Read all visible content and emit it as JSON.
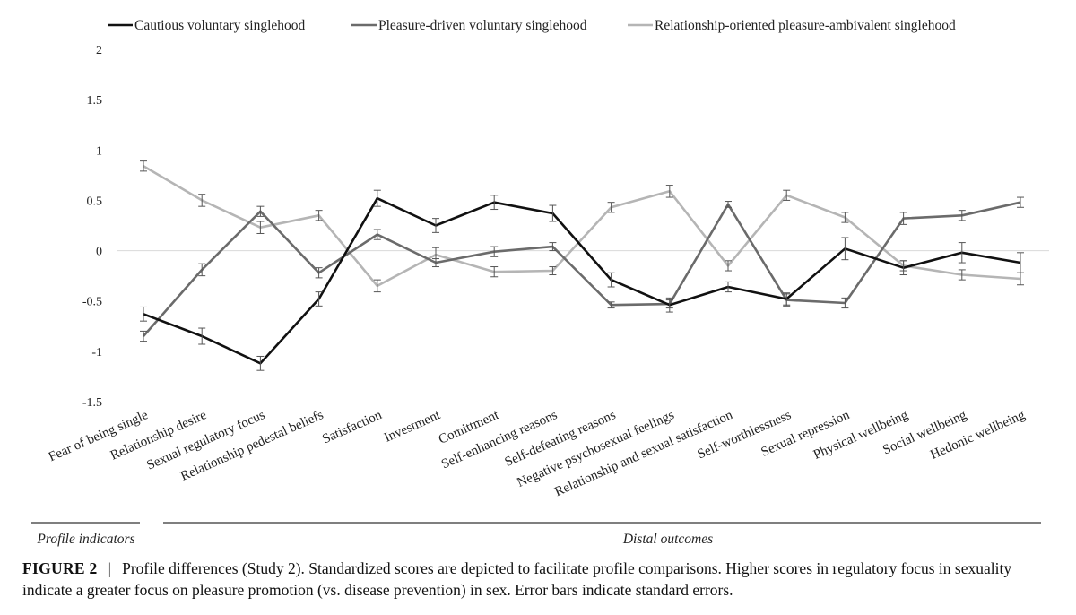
{
  "chart_data": {
    "type": "line",
    "title": "",
    "xlabel": "",
    "ylabel": "",
    "ylim": [
      -1.5,
      2
    ],
    "yticks": [
      -1.5,
      -1,
      -0.5,
      0,
      0.5,
      1,
      1.5,
      2
    ],
    "ytick_labels": [
      "-1.5",
      "-1",
      "-0.5",
      "0",
      "0.5",
      "1",
      "1.5",
      "2"
    ],
    "categories": [
      "Fear of being single",
      "Relationship desire",
      "Sexual regulatory focus",
      "Relationship pedestal beliefs",
      "Satisfaction",
      "Investment",
      "Comittment",
      "Self-enhancing reasons",
      "Self-defeating reasons",
      "Negative psychosexual feelings",
      "Relationship and sexual satisfaction",
      "Self-worthlessness",
      "Sexual repression",
      "Physical wellbeing",
      "Social wellbeing",
      "Hedonic wellbeing"
    ],
    "series": [
      {
        "name": "Cautious voluntary singlehood",
        "color": "#111111",
        "values": [
          -0.63,
          -0.85,
          -1.12,
          -0.48,
          0.52,
          0.25,
          0.48,
          0.37,
          -0.29,
          -0.54,
          -0.36,
          -0.48,
          0.02,
          -0.17,
          -0.02,
          -0.12
        ],
        "errors": [
          0.07,
          0.08,
          0.07,
          0.07,
          0.08,
          0.07,
          0.07,
          0.08,
          0.07,
          0.07,
          0.05,
          0.06,
          0.11,
          0.07,
          0.1,
          0.1
        ]
      },
      {
        "name": "Pleasure-driven voluntary singlehood",
        "color": "#6b6b6b",
        "values": [
          -0.85,
          -0.19,
          0.39,
          -0.22,
          0.16,
          -0.12,
          -0.01,
          0.04,
          -0.54,
          -0.53,
          0.46,
          -0.49,
          -0.52,
          0.32,
          0.35,
          0.48
        ],
        "errors": [
          0.05,
          0.06,
          0.05,
          0.05,
          0.05,
          0.04,
          0.05,
          0.04,
          0.03,
          0.04,
          0.03,
          0.06,
          0.05,
          0.06,
          0.05,
          0.05
        ]
      },
      {
        "name": "Relationship-oriented pleasure-ambivalent singlehood",
        "color": "#b5b5b5",
        "values": [
          0.84,
          0.5,
          0.23,
          0.35,
          -0.35,
          -0.04,
          -0.21,
          -0.2,
          0.43,
          0.59,
          -0.15,
          0.55,
          0.33,
          -0.15,
          -0.24,
          -0.28
        ],
        "errors": [
          0.05,
          0.06,
          0.06,
          0.05,
          0.06,
          0.07,
          0.05,
          0.04,
          0.05,
          0.06,
          0.05,
          0.05,
          0.05,
          0.05,
          0.05,
          0.06
        ]
      }
    ],
    "groups": [
      {
        "label": "Profile indicators"
      },
      {
        "label": "Distal outcomes"
      }
    ]
  },
  "caption": {
    "label": "FIGURE 2",
    "separator": "|",
    "text": "Profile differences (Study 2). Standardized scores are depicted to facilitate profile comparisons. Higher scores in regulatory focus in sexuality indicate a greater focus on pleasure promotion (vs. disease prevention) in sex. Error bars indicate standard errors."
  }
}
